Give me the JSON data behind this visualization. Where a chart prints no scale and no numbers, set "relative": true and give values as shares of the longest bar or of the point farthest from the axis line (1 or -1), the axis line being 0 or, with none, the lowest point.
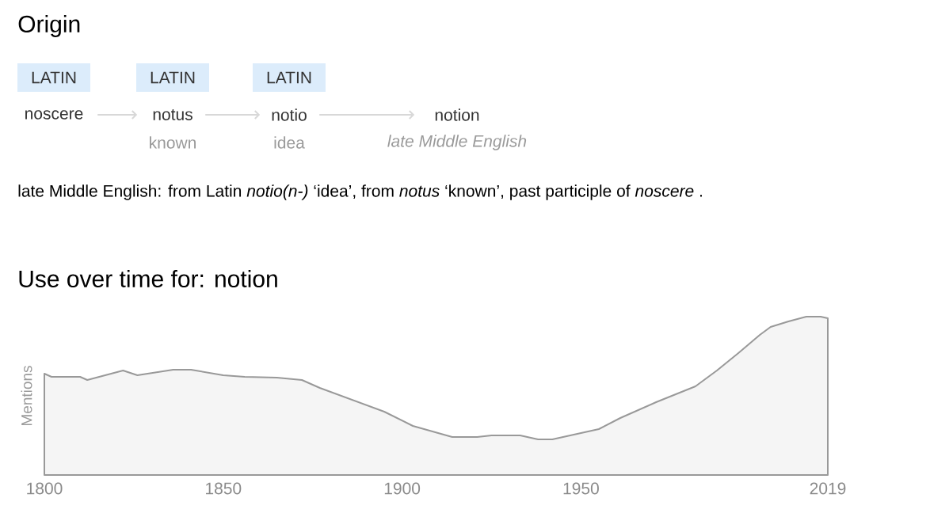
{
  "chart_data": {
    "type": "area",
    "title": "Use over time for: notion",
    "ylabel": "Mentions",
    "relative": true,
    "color": "#999999",
    "xlim": [
      1800,
      2019
    ],
    "xticks": [
      1800,
      1850,
      1900,
      1950,
      2019
    ],
    "x": [
      1800,
      1802,
      1810,
      1812,
      1822,
      1826,
      1836,
      1841,
      1850,
      1856,
      1865,
      1872,
      1877,
      1886,
      1895,
      1903,
      1914,
      1921,
      1925,
      1933,
      1938,
      1942,
      1955,
      1961,
      1971,
      1982,
      1988,
      1994,
      2000,
      2003,
      2008,
      2013,
      2017,
      2019
    ],
    "values": [
      0.64,
      0.62,
      0.62,
      0.6,
      0.66,
      0.63,
      0.665,
      0.665,
      0.63,
      0.62,
      0.615,
      0.6,
      0.55,
      0.475,
      0.4,
      0.31,
      0.24,
      0.24,
      0.25,
      0.25,
      0.225,
      0.225,
      0.29,
      0.36,
      0.46,
      0.56,
      0.66,
      0.77,
      0.885,
      0.935,
      0.97,
      1.0,
      1.0,
      0.99
    ],
    "annotations": [
      "Origin",
      "LATIN",
      "LATIN",
      "LATIN",
      "noscere",
      "notus",
      "notio",
      "notion",
      "known",
      "idea",
      "late Middle English",
      "late Middle English: from Latin *notio(n-)* ‘idea’, from *notus* ‘known’, past participle of *noscere* ."
    ]
  }
}
